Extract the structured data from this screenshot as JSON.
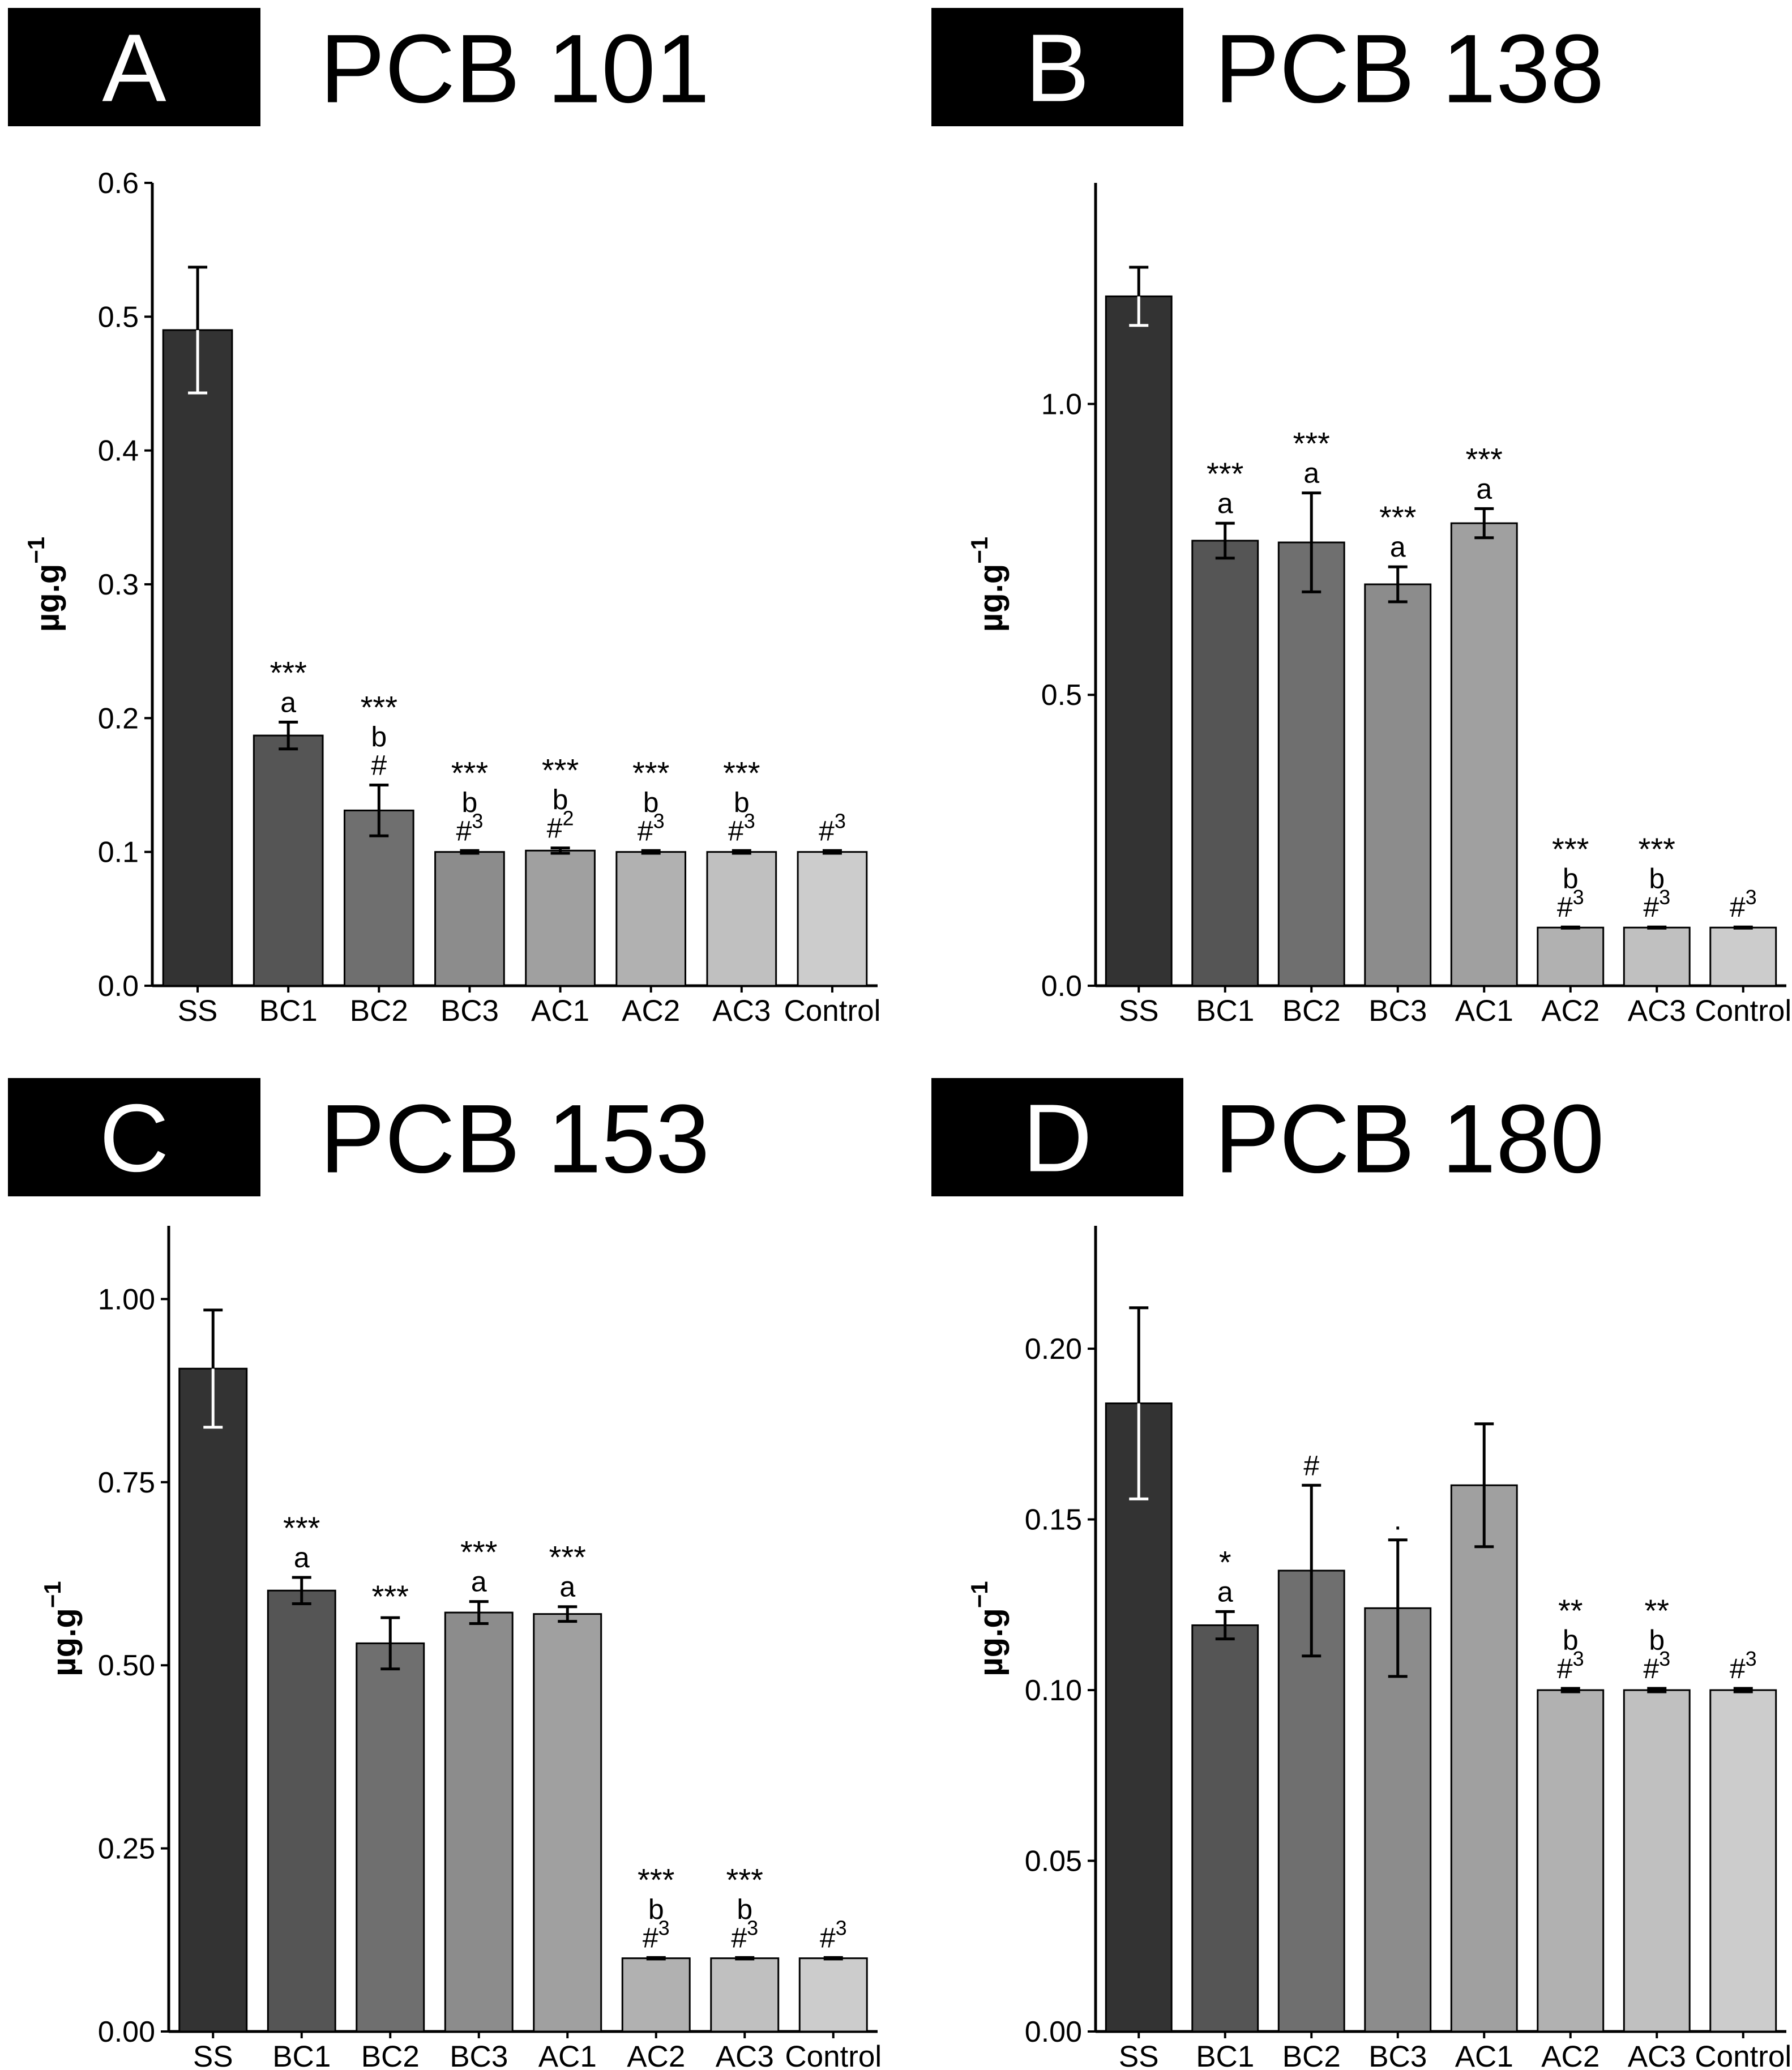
{
  "figure": {
    "panels_caption": "Four bar-chart panels of PCB congener concentrations"
  },
  "chart_data": [
    {
      "type": "bar",
      "panel_letter": "A",
      "title": "PCB 101",
      "ylabel_main": "µg.g",
      "ylabel_exp": "−1",
      "categories": [
        "SS",
        "BC1",
        "BC2",
        "BC3",
        "AC1",
        "AC2",
        "AC3",
        "Control"
      ],
      "values": [
        0.49,
        0.187,
        0.131,
        0.1,
        0.101,
        0.1,
        0.1,
        0.1
      ],
      "errors": [
        0.047,
        0.01,
        0.019,
        0.001,
        0.002,
        0.001,
        0.001,
        0.001
      ],
      "ylim": [
        0,
        0.6
      ],
      "yticks": [
        0.0,
        0.1,
        0.2,
        0.3,
        0.4,
        0.5,
        0.6
      ],
      "ytick_labels": [
        "0.0",
        "0.1",
        "0.2",
        "0.3",
        "0.4",
        "0.5",
        "0.6"
      ],
      "annotations": [
        [],
        [
          {
            "t": "***",
            "s": ""
          },
          {
            "t": "a",
            "s": ""
          }
        ],
        [
          {
            "t": "***",
            "s": ""
          },
          {
            "t": "b",
            "s": ""
          },
          {
            "t": "#",
            "s": ""
          }
        ],
        [
          {
            "t": "***",
            "s": ""
          },
          {
            "t": "b",
            "s": ""
          },
          {
            "t": "#",
            "s": "3"
          }
        ],
        [
          {
            "t": "***",
            "s": ""
          },
          {
            "t": "b",
            "s": ""
          },
          {
            "t": "#",
            "s": "2"
          }
        ],
        [
          {
            "t": "***",
            "s": ""
          },
          {
            "t": "b",
            "s": ""
          },
          {
            "t": "#",
            "s": "3"
          }
        ],
        [
          {
            "t": "***",
            "s": ""
          },
          {
            "t": "b",
            "s": ""
          },
          {
            "t": "#",
            "s": "3"
          }
        ],
        [
          {
            "t": "#",
            "s": "3"
          }
        ]
      ]
    },
    {
      "type": "bar",
      "panel_letter": "B",
      "title": "PCB 138",
      "ylabel_main": "µg.g",
      "ylabel_exp": "−1",
      "categories": [
        "SS",
        "BC1",
        "BC2",
        "BC3",
        "AC1",
        "AC2",
        "AC3",
        "Control"
      ],
      "values": [
        1.185,
        0.765,
        0.762,
        0.69,
        0.795,
        0.1,
        0.1,
        0.1
      ],
      "errors": [
        0.05,
        0.03,
        0.085,
        0.03,
        0.025,
        0.001,
        0.001,
        0.001
      ],
      "ylim": [
        0,
        1.38
      ],
      "yticks": [
        0.0,
        0.5,
        1.0
      ],
      "ytick_labels": [
        "0.0",
        "0.5",
        "1.0"
      ],
      "annotations": [
        [],
        [
          {
            "t": "***",
            "s": ""
          },
          {
            "t": "a",
            "s": ""
          }
        ],
        [
          {
            "t": "***",
            "s": ""
          },
          {
            "t": "a",
            "s": ""
          }
        ],
        [
          {
            "t": "***",
            "s": ""
          },
          {
            "t": "a",
            "s": ""
          }
        ],
        [
          {
            "t": "***",
            "s": ""
          },
          {
            "t": "a",
            "s": ""
          }
        ],
        [
          {
            "t": "***",
            "s": ""
          },
          {
            "t": "b",
            "s": ""
          },
          {
            "t": "#",
            "s": "3"
          }
        ],
        [
          {
            "t": "***",
            "s": ""
          },
          {
            "t": "b",
            "s": ""
          },
          {
            "t": "#",
            "s": "3"
          }
        ],
        [
          {
            "t": "#",
            "s": "3"
          }
        ]
      ]
    },
    {
      "type": "bar",
      "panel_letter": "C",
      "title": "PCB 153",
      "ylabel_main": "µg.g",
      "ylabel_exp": "−1",
      "categories": [
        "SS",
        "BC1",
        "BC2",
        "BC3",
        "AC1",
        "AC2",
        "AC3",
        "Control"
      ],
      "values": [
        0.905,
        0.602,
        0.53,
        0.572,
        0.57,
        0.1,
        0.1,
        0.1
      ],
      "errors": [
        0.08,
        0.018,
        0.035,
        0.015,
        0.01,
        0.001,
        0.001,
        0.001
      ],
      "ylim": [
        0,
        1.1
      ],
      "yticks": [
        0.0,
        0.25,
        0.5,
        0.75,
        1.0
      ],
      "ytick_labels": [
        "0.00",
        "0.25",
        "0.50",
        "0.75",
        "1.00"
      ],
      "annotations": [
        [],
        [
          {
            "t": "***",
            "s": ""
          },
          {
            "t": "a",
            "s": ""
          }
        ],
        [
          {
            "t": "***",
            "s": ""
          }
        ],
        [
          {
            "t": "***",
            "s": ""
          },
          {
            "t": "a",
            "s": ""
          }
        ],
        [
          {
            "t": "***",
            "s": ""
          },
          {
            "t": "a",
            "s": ""
          }
        ],
        [
          {
            "t": "***",
            "s": ""
          },
          {
            "t": "b",
            "s": ""
          },
          {
            "t": "#",
            "s": "3"
          }
        ],
        [
          {
            "t": "***",
            "s": ""
          },
          {
            "t": "b",
            "s": ""
          },
          {
            "t": "#",
            "s": "3"
          }
        ],
        [
          {
            "t": "#",
            "s": "3"
          }
        ]
      ]
    },
    {
      "type": "bar",
      "panel_letter": "D",
      "title": "PCB 180",
      "ylabel_main": "µg.g",
      "ylabel_exp": "−1",
      "categories": [
        "SS",
        "BC1",
        "BC2",
        "BC3",
        "AC1",
        "AC2",
        "AC3",
        "Control"
      ],
      "values": [
        0.184,
        0.119,
        0.135,
        0.124,
        0.16,
        0.1,
        0.1,
        0.1
      ],
      "errors": [
        0.028,
        0.004,
        0.025,
        0.02,
        0.018,
        0.0005,
        0.0005,
        0.0005
      ],
      "ylim": [
        0,
        0.236
      ],
      "yticks": [
        0.0,
        0.05,
        0.1,
        0.15,
        0.2
      ],
      "ytick_labels": [
        "0.00",
        "0.05",
        "0.10",
        "0.15",
        "0.20"
      ],
      "annotations": [
        [],
        [
          {
            "t": "*",
            "s": ""
          },
          {
            "t": "a",
            "s": ""
          }
        ],
        [
          {
            "t": "#",
            "s": ""
          }
        ],
        [
          {
            "t": ".",
            "s": ""
          }
        ],
        [],
        [
          {
            "t": "**",
            "s": ""
          },
          {
            "t": "b",
            "s": ""
          },
          {
            "t": "#",
            "s": "3"
          }
        ],
        [
          {
            "t": "**",
            "s": ""
          },
          {
            "t": "b",
            "s": ""
          },
          {
            "t": "#",
            "s": "3"
          }
        ],
        [
          {
            "t": "#",
            "s": "3"
          }
        ]
      ]
    }
  ]
}
